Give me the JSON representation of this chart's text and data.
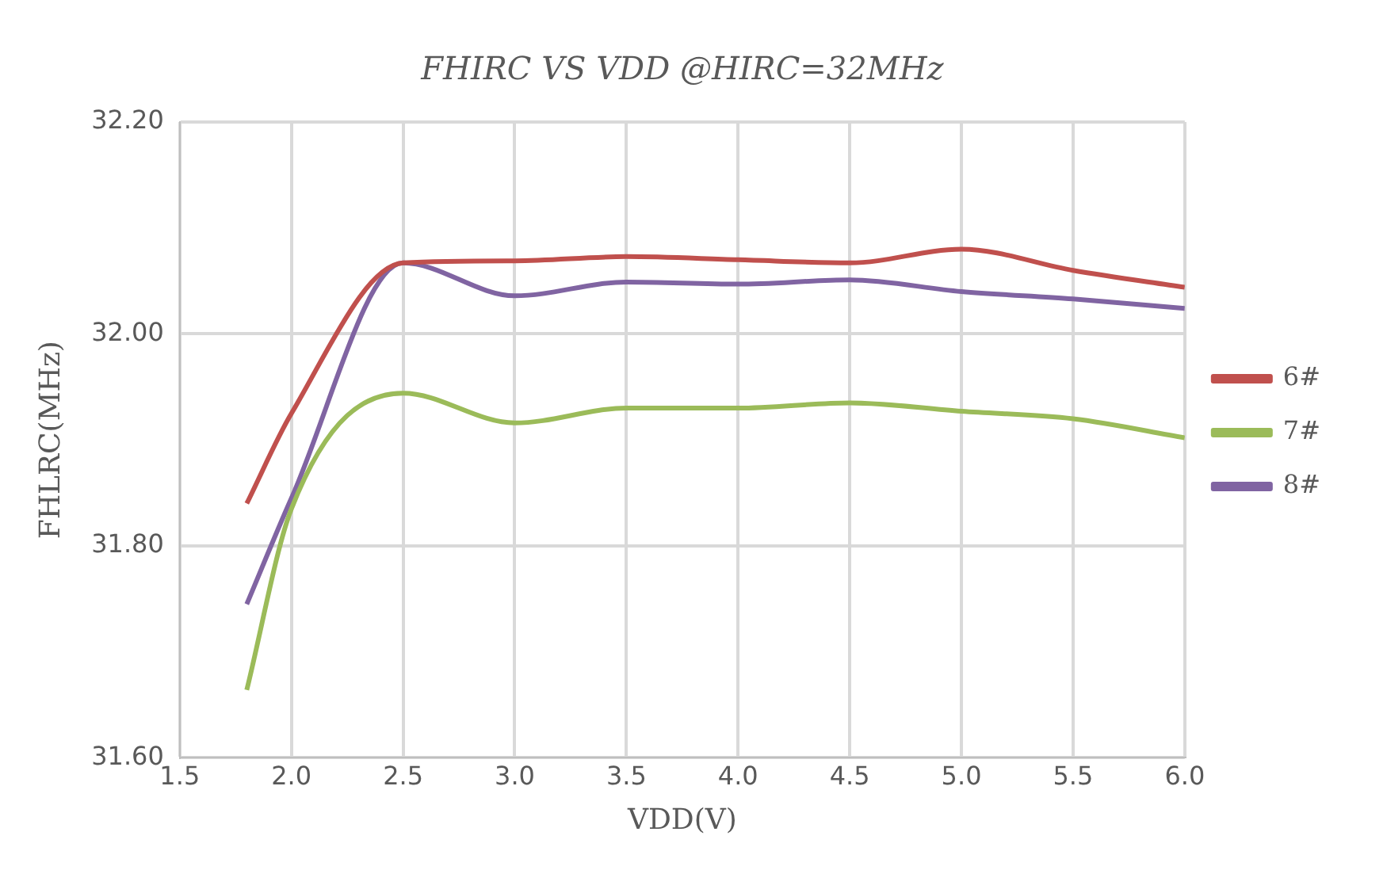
{
  "chart_data": {
    "type": "line",
    "title": "FHIRC VS VDD @HIRC=32MHz",
    "xlabel": "VDD(V)",
    "ylabel": "FHLRC(MHz)",
    "x": [
      1.8,
      2.0,
      2.5,
      3.0,
      3.5,
      4.0,
      4.5,
      5.0,
      5.5,
      6.0
    ],
    "series": [
      {
        "name": "6#",
        "color": "#c0504d",
        "values": [
          31.84,
          31.925,
          32.067,
          32.069,
          32.073,
          32.07,
          32.067,
          32.08,
          32.06,
          32.044
        ]
      },
      {
        "name": "7#",
        "color": "#9bbb59",
        "values": [
          31.664,
          31.835,
          31.944,
          31.916,
          31.93,
          31.93,
          31.935,
          31.927,
          31.92,
          31.902
        ]
      },
      {
        "name": "8#",
        "color": "#8064a2",
        "values": [
          31.745,
          31.845,
          32.067,
          32.036,
          32.049,
          32.047,
          32.051,
          32.04,
          32.033,
          32.024
        ]
      }
    ],
    "xlim": [
      1.5,
      6.0
    ],
    "xticks": [
      1.5,
      {
        "value": 2,
        "label": "2.0"
      },
      2.5,
      {
        "value": 3,
        "label": "3.0"
      },
      3.5,
      {
        "value": 4,
        "label": "4.0"
      },
      4.5,
      {
        "value": 5,
        "label": "5.0"
      },
      5.5,
      {
        "value": 6,
        "label": "6.0"
      }
    ],
    "ylim": [
      31.6,
      32.2
    ],
    "yticks": [
      {
        "value": 31.6,
        "label": "31.60"
      },
      {
        "value": 31.8,
        "label": "31.80"
      },
      {
        "value": 32.0,
        "label": "32.00"
      },
      {
        "value": 32.2,
        "label": "32.20"
      }
    ],
    "grid": true,
    "legend": "right",
    "marker": "none",
    "line_style": "solid"
  }
}
